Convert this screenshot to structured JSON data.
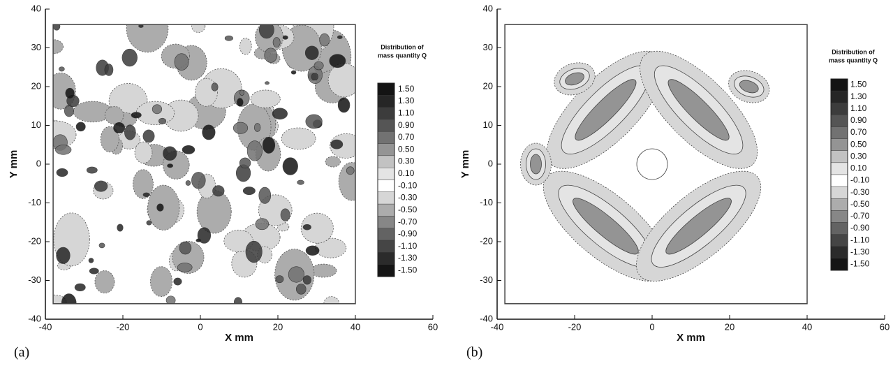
{
  "chart_data": [
    {
      "type": "contour",
      "panel_label": "(a)",
      "xlabel": "X mm",
      "ylabel": "Y mm",
      "xlim": [
        -40,
        60
      ],
      "ylim": [
        -40,
        40
      ],
      "xticks": [
        -40,
        -20,
        0,
        20,
        40,
        60
      ],
      "yticks": [
        -40,
        -30,
        -20,
        -10,
        0,
        10,
        20,
        30,
        40
      ],
      "colorbar_title": [
        "Distribution of",
        "mass quantity Q"
      ],
      "levels": [
        {
          "value": 1.5,
          "label": "1.50"
        },
        {
          "value": 1.3,
          "label": "1.30"
        },
        {
          "value": 1.1,
          "label": "1.10"
        },
        {
          "value": 0.9,
          "label": "0.90"
        },
        {
          "value": 0.7,
          "label": "0.70"
        },
        {
          "value": 0.5,
          "label": "0.50"
        },
        {
          "value": 0.3,
          "label": "0.30"
        },
        {
          "value": 0.1,
          "label": "0.10"
        },
        {
          "value": -0.1,
          "label": "-0.10"
        },
        {
          "value": -0.3,
          "label": "-0.30"
        },
        {
          "value": -0.5,
          "label": "-0.50"
        },
        {
          "value": -0.7,
          "label": "-0.70"
        },
        {
          "value": -0.9,
          "label": "-0.90"
        },
        {
          "value": -1.1,
          "label": "-1.10"
        },
        {
          "value": -1.3,
          "label": "-1.30"
        },
        {
          "value": -1.5,
          "label": "-1.50"
        }
      ],
      "colors": [
        "#141414",
        "#262626",
        "#3c3c3c",
        "#555555",
        "#727272",
        "#949494",
        "#c2c2c2",
        "#e4e4e4",
        "#ffffff",
        "#d6d6d6",
        "#acacac",
        "#878787",
        "#636363",
        "#454545",
        "#2b2b2b",
        "#151515"
      ]
    },
    {
      "type": "contour",
      "panel_label": "(b)",
      "xlabel": "X mm",
      "ylabel": "Y mm",
      "xlim": [
        -40,
        60
      ],
      "ylim": [
        -40,
        40
      ],
      "xticks": [
        -40,
        -20,
        0,
        20,
        40,
        60
      ],
      "yticks": [
        -40,
        -30,
        -20,
        -10,
        0,
        10,
        20,
        30,
        40
      ],
      "colorbar_title": [
        "Distribution of",
        "mass quantity Q"
      ],
      "levels": [
        {
          "value": 1.5,
          "label": "1.50"
        },
        {
          "value": 1.3,
          "label": "1.30"
        },
        {
          "value": 1.1,
          "label": "1.10"
        },
        {
          "value": 0.9,
          "label": "0.90"
        },
        {
          "value": 0.7,
          "label": "0.70"
        },
        {
          "value": 0.5,
          "label": "0.50"
        },
        {
          "value": 0.3,
          "label": "0.30"
        },
        {
          "value": 0.1,
          "label": "0.10"
        },
        {
          "value": -0.1,
          "label": "-0.10"
        },
        {
          "value": -0.3,
          "label": "-0.30"
        },
        {
          "value": -0.5,
          "label": "-0.50"
        },
        {
          "value": -0.7,
          "label": "-0.70"
        },
        {
          "value": -0.9,
          "label": "-0.90"
        },
        {
          "value": -1.1,
          "label": "-1.10"
        },
        {
          "value": -1.3,
          "label": "-1.30"
        },
        {
          "value": -1.5,
          "label": "-1.50"
        }
      ],
      "colors": [
        "#141414",
        "#262626",
        "#3c3c3c",
        "#555555",
        "#727272",
        "#949494",
        "#c2c2c2",
        "#e4e4e4",
        "#ffffff",
        "#d6d6d6",
        "#acacac",
        "#878787",
        "#636363",
        "#454545",
        "#2b2b2b",
        "#151515"
      ]
    }
  ]
}
